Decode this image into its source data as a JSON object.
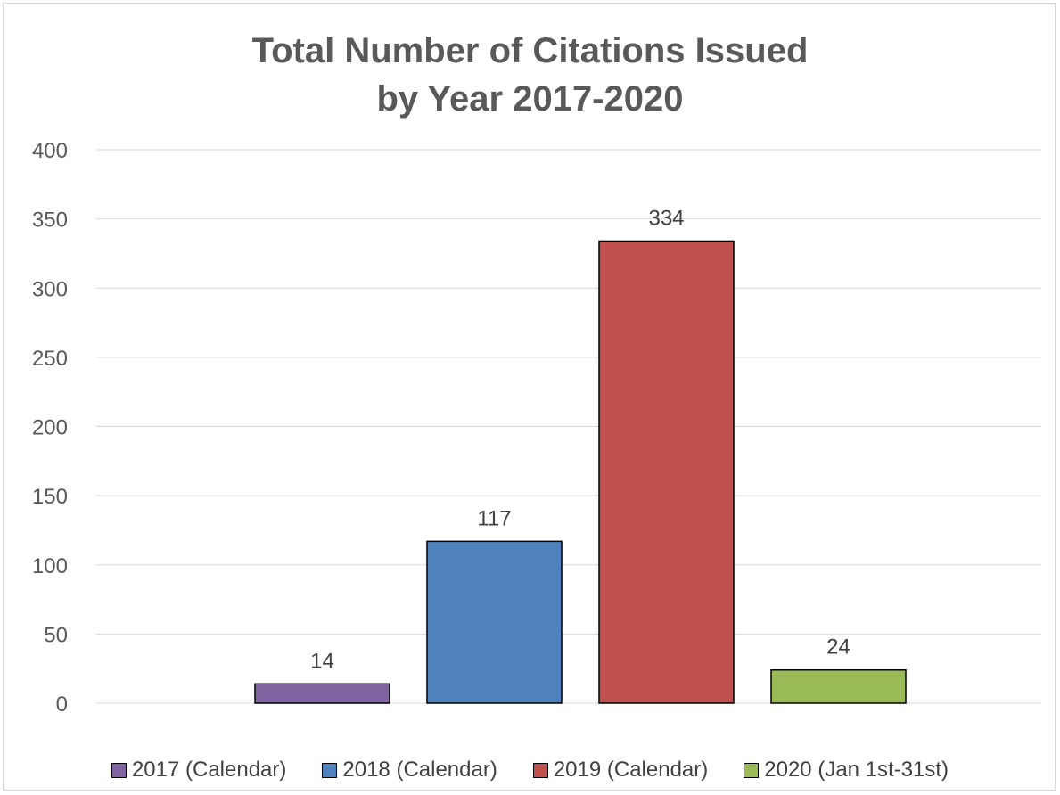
{
  "chart_data": {
    "type": "bar",
    "title_lines": [
      "Total Number of Citations Issued",
      "by Year 2017-2020"
    ],
    "xlabel": "",
    "ylabel": "",
    "ylim": [
      0,
      400
    ],
    "y_ticks": [
      "0",
      "50",
      "100",
      "150",
      "200",
      "250",
      "300",
      "350",
      "400"
    ],
    "grid": true,
    "legend_position": "bottom",
    "series": [
      {
        "name": "2017 (Calendar)",
        "value": 14,
        "label": "14",
        "color": "#8064a2"
      },
      {
        "name": "2018 (Calendar)",
        "value": 117,
        "label": "117",
        "color": "#4f81bd"
      },
      {
        "name": "2019 (Calendar)",
        "value": 334,
        "label": "334",
        "color": "#c0504d"
      },
      {
        "name": "2020 (Jan 1st-31st)",
        "value": 24,
        "label": "24",
        "color": "#9bbb59"
      }
    ]
  }
}
